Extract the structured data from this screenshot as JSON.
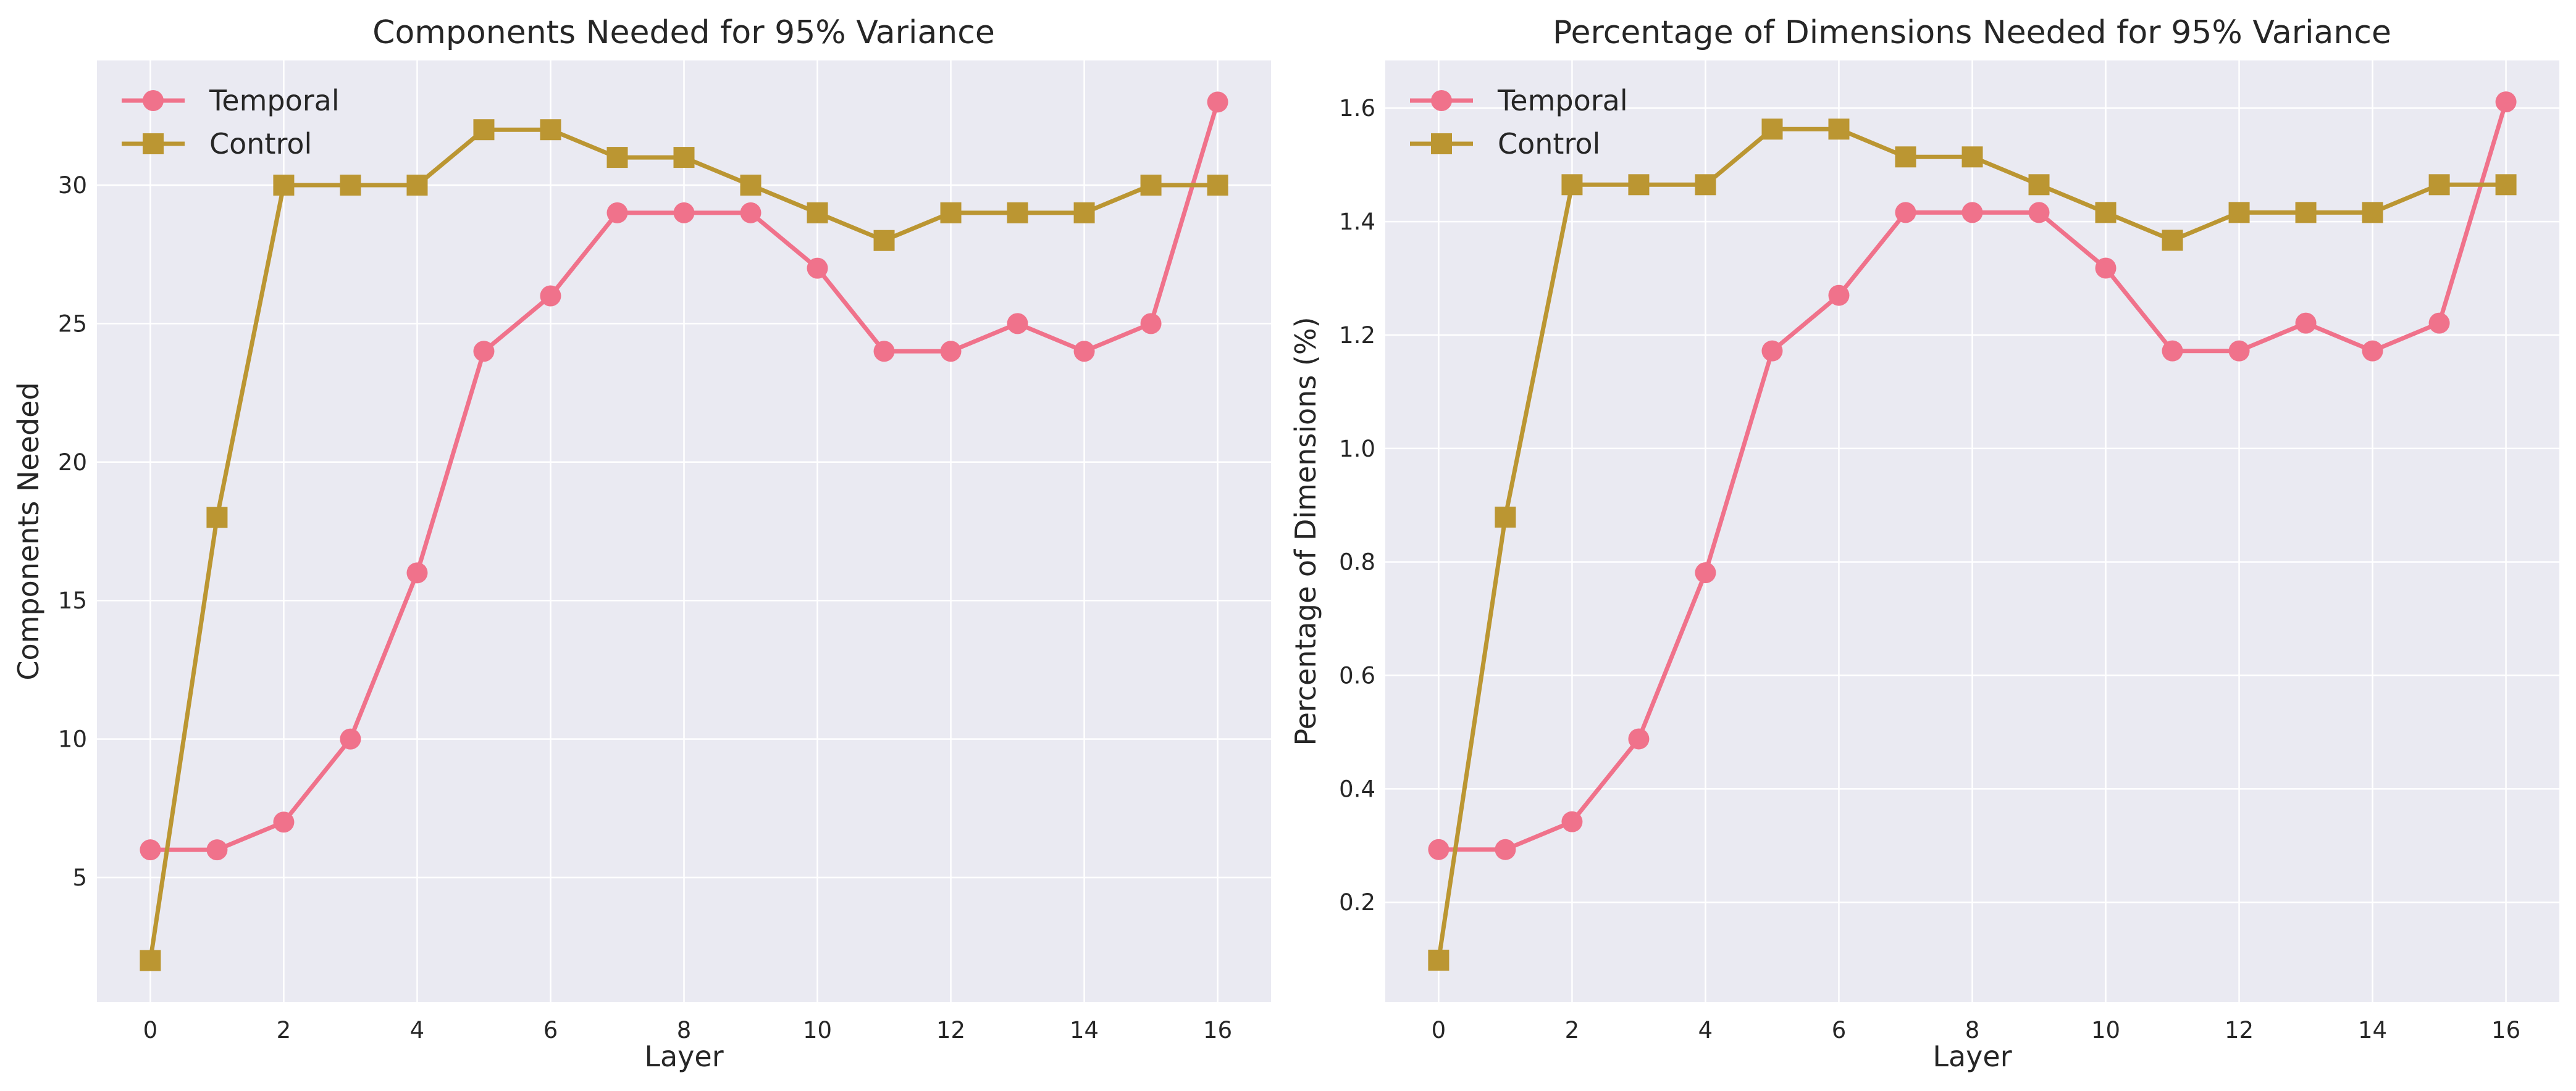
{
  "chart_data": [
    {
      "type": "line",
      "title": "Components Needed for 95% Variance",
      "xlabel": "Layer",
      "ylabel": "Components Needed",
      "x": [
        0,
        1,
        2,
        3,
        4,
        5,
        6,
        7,
        8,
        9,
        10,
        11,
        12,
        13,
        14,
        15,
        16
      ],
      "xlim": [
        -0.8,
        16.8
      ],
      "ylim": [
        0.5,
        34.5
      ],
      "xticks": [
        0,
        2,
        4,
        6,
        8,
        10,
        12,
        14,
        16
      ],
      "yticks": [
        5,
        10,
        15,
        20,
        25,
        30
      ],
      "ytick_labels": [
        "5",
        "10",
        "15",
        "20",
        "25",
        "30"
      ],
      "grid": true,
      "legend_position": "top-left",
      "series": [
        {
          "name": "Temporal",
          "marker": "circle",
          "color": "#f0728b",
          "values": [
            6,
            6,
            7,
            10,
            16,
            24,
            26,
            29,
            29,
            29,
            27,
            24,
            24,
            25,
            24,
            25,
            33
          ]
        },
        {
          "name": "Control",
          "marker": "square",
          "color": "#bb9632",
          "values": [
            2,
            18,
            30,
            30,
            30,
            32,
            32,
            31,
            31,
            30,
            29,
            28,
            29,
            29,
            29,
            30,
            30
          ]
        }
      ]
    },
    {
      "type": "line",
      "title": "Percentage of Dimensions Needed for 95% Variance",
      "xlabel": "Layer",
      "ylabel": "Percentage of Dimensions (%)",
      "x": [
        0,
        1,
        2,
        3,
        4,
        5,
        6,
        7,
        8,
        9,
        10,
        11,
        12,
        13,
        14,
        15,
        16
      ],
      "xlim": [
        -0.8,
        16.8
      ],
      "ylim": [
        0.024,
        1.684
      ],
      "xticks": [
        0,
        2,
        4,
        6,
        8,
        10,
        12,
        14,
        16
      ],
      "yticks": [
        0.2,
        0.4,
        0.6,
        0.8,
        1.0,
        1.2,
        1.4,
        1.6
      ],
      "ytick_labels": [
        "0.2",
        "0.4",
        "0.6",
        "0.8",
        "1.0",
        "1.2",
        "1.4",
        "1.6"
      ],
      "grid": true,
      "legend_position": "top-left",
      "series": [
        {
          "name": "Temporal",
          "marker": "circle",
          "color": "#f0728b",
          "values": [
            0.293,
            0.293,
            0.342,
            0.488,
            0.781,
            1.172,
            1.27,
            1.416,
            1.416,
            1.416,
            1.318,
            1.172,
            1.172,
            1.221,
            1.172,
            1.221,
            1.611
          ]
        },
        {
          "name": "Control",
          "marker": "square",
          "color": "#bb9632",
          "values": [
            0.098,
            0.879,
            1.465,
            1.465,
            1.465,
            1.563,
            1.563,
            1.514,
            1.514,
            1.465,
            1.416,
            1.367,
            1.416,
            1.416,
            1.416,
            1.465,
            1.465
          ]
        }
      ]
    }
  ]
}
